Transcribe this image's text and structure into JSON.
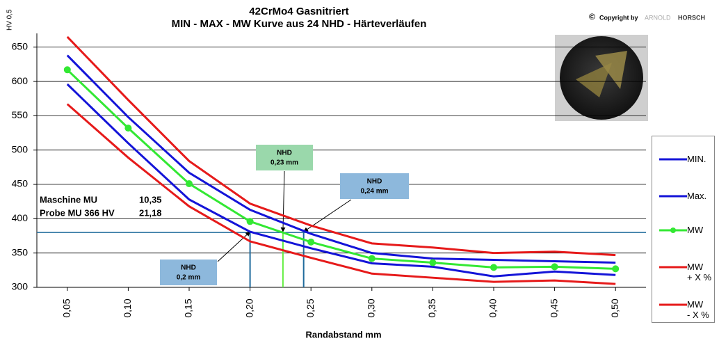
{
  "chart_data": {
    "type": "line",
    "title": "42CrMo4 Gasnitriert",
    "subtitle": "MIN - MAX - MW Kurve aus 24 NHD - Härteverläufen",
    "y_label": "HV 0,5",
    "x_label": "Randabstand mm",
    "x": [
      0.05,
      0.1,
      0.15,
      0.2,
      0.25,
      0.3,
      0.35,
      0.4,
      0.45,
      0.5
    ],
    "xlim": [
      0.025,
      0.525
    ],
    "xticks": [
      {
        "value": 0.05,
        "label": "0,05"
      },
      {
        "value": 0.1,
        "label": "0,10"
      },
      {
        "value": 0.15,
        "label": "0,15"
      },
      {
        "value": 0.2,
        "label": "0,20"
      },
      {
        "value": 0.25,
        "label": "0,25"
      },
      {
        "value": 0.3,
        "label": "0,30"
      },
      {
        "value": 0.35,
        "label": "0,35"
      },
      {
        "value": 0.4,
        "label": "0,40"
      },
      {
        "value": 0.45,
        "label": "0,45"
      },
      {
        "value": 0.5,
        "label": "0,50"
      }
    ],
    "ylim": [
      300,
      670
    ],
    "yticks": [
      300,
      350,
      400,
      450,
      500,
      550,
      600,
      650
    ],
    "grid": true,
    "legend": "right",
    "series": [
      {
        "name": "MIN.",
        "color": "#1414d8",
        "marker": false,
        "values": [
          596,
          510,
          428,
          381,
          357,
          335,
          330,
          316,
          323,
          318
        ]
      },
      {
        "name": "Max.",
        "color": "#1414d8",
        "marker": false,
        "values": [
          638,
          548,
          467,
          413,
          378,
          350,
          342,
          340,
          338,
          336
        ]
      },
      {
        "name": "MW",
        "color": "#33e833",
        "marker": true,
        "values": [
          617,
          532,
          451,
          396,
          366,
          342,
          336,
          329,
          330,
          327
        ]
      },
      {
        "name": "MW\n+ X %",
        "color": "#e61a1a",
        "marker": false,
        "values": [
          665,
          573,
          484,
          422,
          390,
          364,
          358,
          350,
          352,
          347
        ]
      },
      {
        "name": "MW\n- X %",
        "color": "#e61a1a",
        "marker": false,
        "values": [
          567,
          489,
          418,
          367,
          343,
          320,
          314,
          308,
          310,
          305
        ]
      }
    ],
    "reference_line": {
      "value": 380,
      "color": "#1f6b9c"
    },
    "nhd": [
      {
        "x": 0.2,
        "color": "#1f6b9c",
        "box_color": "#8db8dc",
        "title": "NHD",
        "label": "0,2 mm"
      },
      {
        "x": 0.227,
        "color": "#66ee44",
        "box_color": "#9ad8ab",
        "title": "NHD",
        "label": "0,23 mm"
      },
      {
        "x": 0.244,
        "color": "#1f6b9c",
        "box_color": "#8db8dc",
        "title": "NHD",
        "label": "0,24 mm"
      }
    ],
    "notes": [
      {
        "label": "Maschine MU",
        "value": "10,35"
      },
      {
        "label": "Probe MU 366 HV",
        "value": "21,18"
      }
    ],
    "copyright": {
      "prefix": "Copyright by",
      "brand_light": "ARNOLD",
      "brand_dark": "HORSCH"
    }
  }
}
